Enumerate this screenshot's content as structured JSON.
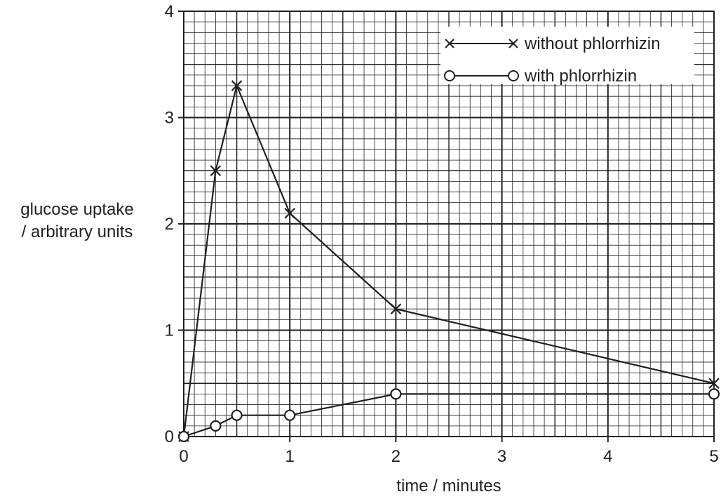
{
  "chart_data": {
    "type": "line",
    "xlabel": "time / minutes",
    "ylabel": [
      "glucose uptake",
      "/ arbitrary units"
    ],
    "xlim": [
      0,
      5
    ],
    "ylim": [
      0,
      4
    ],
    "x_ticks": [
      0,
      1,
      2,
      3,
      4,
      5
    ],
    "x_tick_labels": [
      "0",
      "1",
      "2",
      "3",
      "4",
      "5"
    ],
    "y_ticks": [
      0,
      1,
      2,
      3,
      4
    ],
    "y_tick_labels": [
      "0",
      "1",
      "2",
      "3",
      "4"
    ],
    "grid": true,
    "legend_position": "top-right",
    "series": [
      {
        "name": "without phlorrhizin",
        "marker": "cross",
        "points": [
          {
            "x": 0,
            "y": 0
          },
          {
            "x": 0.3,
            "y": 2.5
          },
          {
            "x": 0.5,
            "y": 3.3
          },
          {
            "x": 1,
            "y": 2.1
          },
          {
            "x": 2,
            "y": 1.2
          },
          {
            "x": 5,
            "y": 0.5
          }
        ]
      },
      {
        "name": "with phlorrhizin",
        "marker": "circle",
        "points": [
          {
            "x": 0,
            "y": 0
          },
          {
            "x": 0.3,
            "y": 0.1
          },
          {
            "x": 0.5,
            "y": 0.2
          },
          {
            "x": 1,
            "y": 0.2
          },
          {
            "x": 2,
            "y": 0.4
          },
          {
            "x": 5,
            "y": 0.4
          }
        ]
      }
    ],
    "colors": {
      "ink": "#231f20",
      "background": "#ffffff"
    }
  }
}
